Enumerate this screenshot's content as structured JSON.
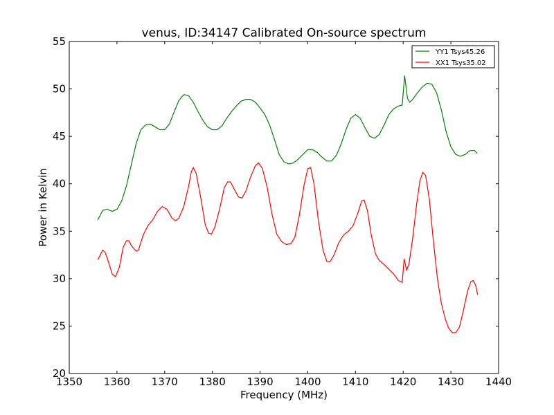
{
  "chart_data": {
    "type": "line",
    "title": "venus, ID:34147 Calibrated On-source spectrum",
    "xlabel": "Frequency (MHz)",
    "ylabel": "Power in Kelvin",
    "xlim": [
      1350,
      1440
    ],
    "ylim": [
      20,
      55
    ],
    "xticks": [
      1350,
      1360,
      1370,
      1380,
      1390,
      1400,
      1410,
      1420,
      1430,
      1440
    ],
    "yticks": [
      20,
      25,
      30,
      35,
      40,
      45,
      50,
      55
    ],
    "grid": false,
    "legend_position": "top-right",
    "series": [
      {
        "name": "YY1 Tsys45.26",
        "color": "#008000",
        "points": [
          [
            1356,
            36.2
          ],
          [
            1357,
            37.2
          ],
          [
            1358,
            37.3
          ],
          [
            1359,
            37.1
          ],
          [
            1360,
            37.3
          ],
          [
            1361,
            38.2
          ],
          [
            1362,
            39.8
          ],
          [
            1363,
            42.0
          ],
          [
            1364,
            44.2
          ],
          [
            1365,
            45.7
          ],
          [
            1366,
            46.2
          ],
          [
            1367,
            46.3
          ],
          [
            1368,
            46.0
          ],
          [
            1369,
            45.7
          ],
          [
            1370,
            45.7
          ],
          [
            1371,
            46.3
          ],
          [
            1372,
            47.6
          ],
          [
            1373,
            48.8
          ],
          [
            1374,
            49.4
          ],
          [
            1375,
            49.3
          ],
          [
            1376,
            48.6
          ],
          [
            1377,
            47.6
          ],
          [
            1378,
            46.7
          ],
          [
            1379,
            46.0
          ],
          [
            1380,
            45.7
          ],
          [
            1381,
            45.7
          ],
          [
            1382,
            46.1
          ],
          [
            1383,
            46.9
          ],
          [
            1384,
            47.6
          ],
          [
            1385,
            48.2
          ],
          [
            1386,
            48.7
          ],
          [
            1387,
            48.9
          ],
          [
            1388,
            48.9
          ],
          [
            1389,
            48.6
          ],
          [
            1390,
            48.0
          ],
          [
            1391,
            47.3
          ],
          [
            1392,
            46.2
          ],
          [
            1393,
            44.7
          ],
          [
            1394,
            43.1
          ],
          [
            1395,
            42.3
          ],
          [
            1396,
            42.1
          ],
          [
            1397,
            42.2
          ],
          [
            1398,
            42.6
          ],
          [
            1399,
            43.1
          ],
          [
            1400,
            43.6
          ],
          [
            1401,
            43.6
          ],
          [
            1402,
            43.3
          ],
          [
            1403,
            42.8
          ],
          [
            1404,
            42.4
          ],
          [
            1405,
            42.4
          ],
          [
            1406,
            43.0
          ],
          [
            1407,
            44.2
          ],
          [
            1408,
            45.7
          ],
          [
            1409,
            46.9
          ],
          [
            1410,
            47.3
          ],
          [
            1411,
            46.9
          ],
          [
            1412,
            45.9
          ],
          [
            1413,
            45.0
          ],
          [
            1414,
            44.8
          ],
          [
            1415,
            45.2
          ],
          [
            1416,
            46.2
          ],
          [
            1417,
            47.3
          ],
          [
            1418,
            47.9
          ],
          [
            1419,
            48.2
          ],
          [
            1419.8,
            48.3
          ],
          [
            1420.3,
            51.4
          ],
          [
            1420.9,
            49.0
          ],
          [
            1421.4,
            48.6
          ],
          [
            1422,
            48.9
          ],
          [
            1423,
            49.6
          ],
          [
            1424,
            50.2
          ],
          [
            1425,
            50.6
          ],
          [
            1426,
            50.5
          ],
          [
            1427,
            49.6
          ],
          [
            1428,
            47.8
          ],
          [
            1429,
            45.5
          ],
          [
            1430,
            43.9
          ],
          [
            1431,
            43.1
          ],
          [
            1432,
            42.9
          ],
          [
            1433,
            43.1
          ],
          [
            1434,
            43.5
          ],
          [
            1435,
            43.5
          ],
          [
            1435.5,
            43.2
          ]
        ]
      },
      {
        "name": "XX1 Tsys35.02",
        "color": "#ff0000",
        "points": [
          [
            1356,
            32.0
          ],
          [
            1357,
            33.0
          ],
          [
            1357.5,
            32.8
          ],
          [
            1358,
            32.1
          ],
          [
            1359,
            30.5
          ],
          [
            1359.7,
            30.2
          ],
          [
            1360.5,
            31.2
          ],
          [
            1361.3,
            33.3
          ],
          [
            1362,
            34.0
          ],
          [
            1362.5,
            34.0
          ],
          [
            1363,
            33.5
          ],
          [
            1364,
            32.9
          ],
          [
            1364.5,
            33.0
          ],
          [
            1365.5,
            34.6
          ],
          [
            1366.5,
            35.6
          ],
          [
            1367.5,
            36.2
          ],
          [
            1368.5,
            37.1
          ],
          [
            1369.5,
            37.6
          ],
          [
            1370.5,
            37.3
          ],
          [
            1371.5,
            36.4
          ],
          [
            1372.3,
            36.1
          ],
          [
            1373,
            36.4
          ],
          [
            1374,
            37.6
          ],
          [
            1375,
            39.7
          ],
          [
            1375.6,
            41.3
          ],
          [
            1376,
            41.7
          ],
          [
            1376.6,
            41.1
          ],
          [
            1377.5,
            38.7
          ],
          [
            1378.5,
            35.7
          ],
          [
            1379.2,
            34.8
          ],
          [
            1379.8,
            34.7
          ],
          [
            1380.5,
            35.4
          ],
          [
            1381.5,
            37.3
          ],
          [
            1382.5,
            39.6
          ],
          [
            1383.2,
            40.2
          ],
          [
            1383.8,
            40.2
          ],
          [
            1384.5,
            39.5
          ],
          [
            1385.5,
            38.6
          ],
          [
            1386.2,
            38.5
          ],
          [
            1387,
            39.2
          ],
          [
            1388,
            40.7
          ],
          [
            1389,
            41.9
          ],
          [
            1389.7,
            42.2
          ],
          [
            1390.5,
            41.6
          ],
          [
            1391.5,
            39.6
          ],
          [
            1392.5,
            36.8
          ],
          [
            1393.5,
            34.7
          ],
          [
            1394.5,
            33.9
          ],
          [
            1395.5,
            33.6
          ],
          [
            1396.5,
            33.7
          ],
          [
            1397.3,
            34.4
          ],
          [
            1398.2,
            36.6
          ],
          [
            1399.2,
            39.8
          ],
          [
            1400,
            41.6
          ],
          [
            1400.6,
            41.7
          ],
          [
            1401.3,
            40.0
          ],
          [
            1402.2,
            36.2
          ],
          [
            1403.2,
            33.0
          ],
          [
            1404,
            31.8
          ],
          [
            1404.7,
            31.8
          ],
          [
            1405.5,
            32.5
          ],
          [
            1406.5,
            33.8
          ],
          [
            1407.5,
            34.6
          ],
          [
            1408.5,
            35.0
          ],
          [
            1409.5,
            35.6
          ],
          [
            1410.5,
            36.9
          ],
          [
            1411.3,
            38.2
          ],
          [
            1411.8,
            38.3
          ],
          [
            1412.5,
            37.2
          ],
          [
            1413.3,
            34.6
          ],
          [
            1414.2,
            32.6
          ],
          [
            1415,
            31.9
          ],
          [
            1416,
            31.5
          ],
          [
            1417,
            31.0
          ],
          [
            1418,
            30.5
          ],
          [
            1419,
            29.8
          ],
          [
            1419.8,
            29.6
          ],
          [
            1420.2,
            32.1
          ],
          [
            1420.7,
            30.9
          ],
          [
            1421.2,
            31.5
          ],
          [
            1422,
            34.3
          ],
          [
            1422.8,
            37.8
          ],
          [
            1423.5,
            40.3
          ],
          [
            1424.1,
            41.2
          ],
          [
            1424.7,
            40.9
          ],
          [
            1425.5,
            38.3
          ],
          [
            1426.3,
            34.1
          ],
          [
            1427.2,
            29.9
          ],
          [
            1428,
            27.4
          ],
          [
            1428.8,
            25.8
          ],
          [
            1429.5,
            24.8
          ],
          [
            1430.3,
            24.3
          ],
          [
            1431,
            24.3
          ],
          [
            1431.8,
            24.9
          ],
          [
            1432.6,
            26.6
          ],
          [
            1433.5,
            28.7
          ],
          [
            1434.2,
            29.7
          ],
          [
            1434.7,
            29.8
          ],
          [
            1435.2,
            29.3
          ],
          [
            1435.6,
            28.3
          ]
        ]
      }
    ]
  }
}
